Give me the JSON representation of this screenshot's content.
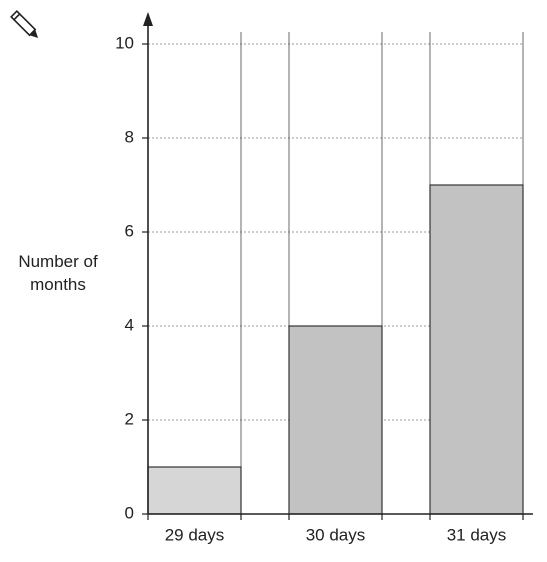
{
  "chart_data": {
    "type": "bar",
    "ylabel": "Number of months",
    "categories": [
      "29 days",
      "30 days",
      "31 days"
    ],
    "values": [
      1,
      4,
      7
    ],
    "colors": [
      "#d6d6d6",
      "#c2c2c2",
      "#c2c2c2"
    ],
    "ylim": [
      0,
      10
    ],
    "yticks": [
      0,
      2,
      4,
      6,
      8,
      10
    ],
    "grid": true
  }
}
